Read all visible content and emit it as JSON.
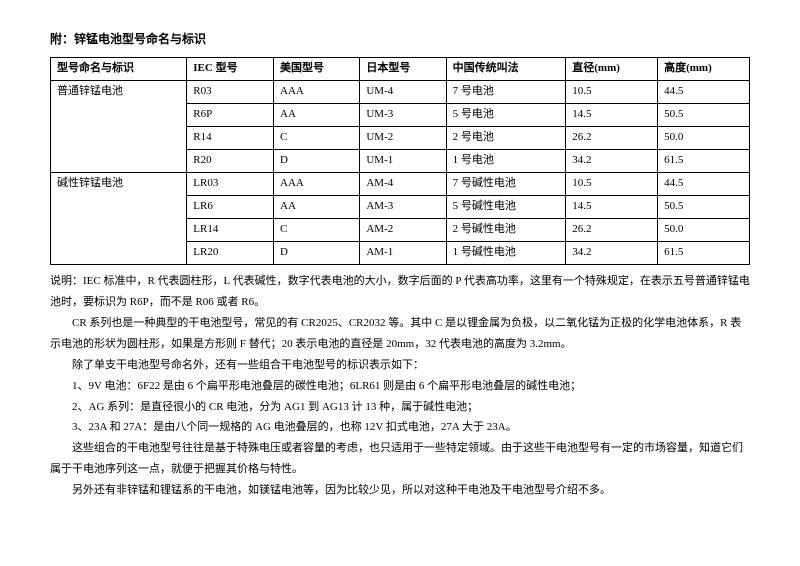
{
  "title": "附：锌锰电池型号命名与标识",
  "table": {
    "headers": [
      "型号命名与标识",
      "IEC 型号",
      "美国型号",
      "日本型号",
      "中国传统叫法",
      "直径(mm)",
      "高度(mm)"
    ],
    "sections": [
      {
        "group": "普通锌锰电池",
        "rows": [
          [
            "R03",
            "AAA",
            "UM-4",
            "7 号电池",
            "10.5",
            "44.5"
          ],
          [
            "R6P",
            "AA",
            "UM-3",
            "5 号电池",
            "14.5",
            "50.5"
          ],
          [
            "R14",
            "C",
            "UM-2",
            "2 号电池",
            "26.2",
            "50.0"
          ],
          [
            "R20",
            "D",
            "UM-1",
            "1 号电池",
            "34.2",
            "61.5"
          ]
        ]
      },
      {
        "group": "碱性锌锰电池",
        "rows": [
          [
            "LR03",
            "AAA",
            "AM-4",
            "7 号碱性电池",
            "10.5",
            "44.5"
          ],
          [
            "LR6",
            "AA",
            "AM-3",
            "5 号碱性电池",
            "14.5",
            "50.5"
          ],
          [
            "LR14",
            "C",
            "AM-2",
            "2 号碱性电池",
            "26.2",
            "50.0"
          ],
          [
            "LR20",
            "D",
            "AM-1",
            "1 号碱性电池",
            "34.2",
            "61.5"
          ]
        ]
      }
    ]
  },
  "paragraphs": [
    "说明：IEC 标准中，R 代表圆柱形，L 代表碱性，数字代表电池的大小，数字后面的 P 代表高功率，这里有一个特殊规定，在表示五号普通锌锰电池时，要标识为 R6P，而不是 R06 或者 R6。",
    "CR 系列也是一种典型的干电池型号，常见的有 CR2025、CR2032 等。其中 C 是以锂金属为负极，以二氧化锰为正极的化学电池体系，R 表示电池的形状为圆柱形，如果是方形则 F 替代；20 表示电池的直径是 20mm，32 代表电池的高度为 3.2mm。",
    "除了单支干电池型号命名外，还有一些组合干电池型号的标识表示如下：",
    "1、9V 电池：6F22 是由 6 个扁平形电池叠层的碳性电池；6LR61 则是由 6 个扁平形电池叠层的碱性电池；",
    "2、AG 系列：是直径很小的 CR 电池，分为 AG1 到 AG13 计 13 种，属于碱性电池；",
    "3、23A 和 27A：是由八个同一规格的 AG 电池叠层的，也称 12V 扣式电池，27A 大于 23A。",
    "这些组合的干电池型号往往是基于特殊电压或者容量的考虑，也只适用于一些特定领域。由于这些干电池型号有一定的市场容量，知道它们属于干电池序列这一点，就便于把握其价格与特性。",
    "另外还有非锌锰和锂锰系的干电池，如镁锰电池等，因为比较少见，所以对这种干电池及干电池型号介绍不多。"
  ]
}
